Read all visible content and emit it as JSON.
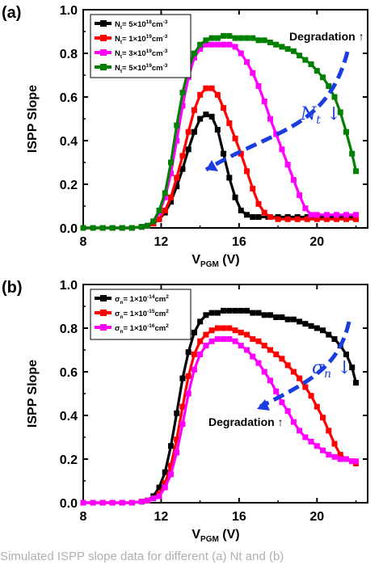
{
  "chart_data": [
    {
      "panel": "(a)",
      "type": "line",
      "xlabel_main": "V",
      "xlabel_sub": "PGM",
      "xlabel_unit": " (V)",
      "ylabel": "ISPP Slope",
      "xlim": [
        8,
        22.6
      ],
      "ylim": [
        0,
        1.0
      ],
      "xticks": [
        "8",
        "12",
        "16",
        "20"
      ],
      "yticks": [
        "0.0",
        "0.2",
        "0.4",
        "0.6",
        "0.8",
        "1.0"
      ],
      "legend_position": "top-left",
      "annotations": [
        {
          "text": "Degradation ↑"
        },
        {
          "text": "N",
          "sub": "t",
          "suffix": " ↓"
        }
      ],
      "series": [
        {
          "name_main": "N",
          "name_sub": "t",
          "name_rest": "= 5×10",
          "name_exp": "18",
          "name_unit": "cm",
          "name_unit_exp": "-3",
          "color": "#000000",
          "x": [
            8,
            8.5,
            9,
            9.5,
            10,
            10.5,
            11,
            11.3,
            11.6,
            11.9,
            12.2,
            12.5,
            12.8,
            13.1,
            13.4,
            13.7,
            14.0,
            14.3,
            14.6,
            14.9,
            15.2,
            15.5,
            15.8,
            16.1,
            16.4,
            16.7,
            17,
            17.5,
            18,
            18.5,
            19,
            19.5,
            20,
            20.5,
            21,
            21.5,
            22
          ],
          "y": [
            0.0,
            0.0,
            0.0,
            0.0,
            0.0,
            0.0,
            0.005,
            0.01,
            0.02,
            0.04,
            0.07,
            0.12,
            0.19,
            0.27,
            0.36,
            0.44,
            0.5,
            0.52,
            0.51,
            0.45,
            0.34,
            0.23,
            0.14,
            0.08,
            0.06,
            0.05,
            0.05,
            0.05,
            0.05,
            0.05,
            0.05,
            0.05,
            0.05,
            0.05,
            0.05,
            0.05,
            0.05
          ]
        },
        {
          "name_main": "N",
          "name_sub": "t",
          "name_rest": "= 1×10",
          "name_exp": "19",
          "name_unit": "cm",
          "name_unit_exp": "-3",
          "color": "#ff0000",
          "x": [
            8,
            8.5,
            9,
            9.5,
            10,
            10.5,
            11,
            11.3,
            11.6,
            11.9,
            12.2,
            12.5,
            12.8,
            13.1,
            13.4,
            13.7,
            14.0,
            14.3,
            14.6,
            14.9,
            15.2,
            15.5,
            15.8,
            16.1,
            16.4,
            16.7,
            17.0,
            17.3,
            17.6,
            18,
            18.5,
            19,
            19.5,
            20,
            20.5,
            21,
            21.5,
            22
          ],
          "y": [
            0.0,
            0.0,
            0.0,
            0.0,
            0.0,
            0.0,
            0.005,
            0.01,
            0.02,
            0.04,
            0.08,
            0.14,
            0.23,
            0.33,
            0.44,
            0.54,
            0.61,
            0.64,
            0.64,
            0.61,
            0.55,
            0.48,
            0.41,
            0.34,
            0.26,
            0.18,
            0.11,
            0.07,
            0.05,
            0.04,
            0.04,
            0.04,
            0.04,
            0.04,
            0.04,
            0.04,
            0.04,
            0.04
          ]
        },
        {
          "name_main": "N",
          "name_sub": "t",
          "name_rest": "= 3×10",
          "name_exp": "19",
          "name_unit": "cm",
          "name_unit_exp": "-3",
          "color": "#ff00ff",
          "x": [
            8,
            8.5,
            9,
            9.5,
            10,
            10.5,
            11,
            11.3,
            11.6,
            11.9,
            12.2,
            12.5,
            12.8,
            13.1,
            13.4,
            13.7,
            14.0,
            14.3,
            14.6,
            14.9,
            15.2,
            15.5,
            15.8,
            16.1,
            16.4,
            16.7,
            17.0,
            17.3,
            17.6,
            17.9,
            18.2,
            18.5,
            18.8,
            19.1,
            19.4,
            19.7,
            20,
            20.5,
            21,
            21.5,
            22
          ],
          "y": [
            0.0,
            0.0,
            0.0,
            0.0,
            0.0,
            0.0,
            0.005,
            0.01,
            0.03,
            0.07,
            0.14,
            0.25,
            0.4,
            0.56,
            0.69,
            0.78,
            0.82,
            0.84,
            0.84,
            0.84,
            0.84,
            0.84,
            0.83,
            0.8,
            0.76,
            0.71,
            0.65,
            0.58,
            0.5,
            0.43,
            0.36,
            0.29,
            0.22,
            0.15,
            0.09,
            0.06,
            0.06,
            0.06,
            0.06,
            0.06,
            0.06
          ]
        },
        {
          "name_main": "N",
          "name_sub": "t",
          "name_rest": "= 5×10",
          "name_exp": "19",
          "name_unit": "cm",
          "name_unit_exp": "-3",
          "color": "#008000",
          "x": [
            8,
            8.5,
            9,
            9.5,
            10,
            10.5,
            11,
            11.3,
            11.6,
            11.9,
            12.2,
            12.5,
            12.8,
            13.1,
            13.4,
            13.7,
            14.0,
            14.3,
            14.6,
            14.9,
            15.2,
            15.5,
            15.8,
            16.1,
            16.4,
            16.7,
            17.0,
            17.3,
            17.6,
            17.9,
            18.2,
            18.5,
            18.8,
            19.1,
            19.4,
            19.7,
            20,
            20.3,
            20.6,
            20.9,
            21.2,
            21.5,
            21.8,
            22
          ],
          "y": [
            0.0,
            0.0,
            0.0,
            0.0,
            0.0,
            0.0,
            0.005,
            0.01,
            0.03,
            0.08,
            0.16,
            0.3,
            0.47,
            0.62,
            0.73,
            0.8,
            0.84,
            0.86,
            0.87,
            0.87,
            0.88,
            0.88,
            0.87,
            0.87,
            0.87,
            0.87,
            0.86,
            0.86,
            0.85,
            0.84,
            0.83,
            0.82,
            0.81,
            0.79,
            0.77,
            0.75,
            0.72,
            0.69,
            0.65,
            0.6,
            0.53,
            0.44,
            0.34,
            0.26
          ]
        }
      ]
    },
    {
      "panel": "(b)",
      "type": "line",
      "xlabel_main": "V",
      "xlabel_sub": "PGM",
      "xlabel_unit": " (V)",
      "ylabel": "ISPP Slope",
      "xlim": [
        8,
        22.6
      ],
      "ylim": [
        0,
        1.0
      ],
      "xticks": [
        "8",
        "12",
        "16",
        "20"
      ],
      "yticks": [
        "0.0",
        "0.2",
        "0.4",
        "0.6",
        "0.8",
        "1.0"
      ],
      "legend_position": "top-left",
      "annotations": [
        {
          "text": "Degradation ↑"
        },
        {
          "text": "σ",
          "sub": "n",
          "suffix": " ↓"
        }
      ],
      "series": [
        {
          "name_main": "σ",
          "name_sub": "n",
          "name_rest": "= 1×10",
          "name_exp": "-14",
          "name_unit": "cm",
          "name_unit_exp": "2",
          "color": "#000000",
          "x": [
            8,
            8.5,
            9,
            9.5,
            10,
            10.5,
            11,
            11.3,
            11.6,
            11.9,
            12.2,
            12.5,
            12.8,
            13.1,
            13.4,
            13.7,
            14.0,
            14.3,
            14.6,
            14.9,
            15.2,
            15.5,
            15.8,
            16.1,
            16.4,
            16.7,
            17.0,
            17.3,
            17.6,
            17.9,
            18.2,
            18.5,
            18.8,
            19.1,
            19.4,
            19.7,
            20,
            20.3,
            20.6,
            20.9,
            21.2,
            21.5,
            21.8,
            22
          ],
          "y": [
            0.0,
            0.0,
            0.0,
            0.0,
            0.0,
            0.0,
            0.005,
            0.01,
            0.03,
            0.07,
            0.14,
            0.26,
            0.41,
            0.57,
            0.69,
            0.78,
            0.83,
            0.86,
            0.87,
            0.87,
            0.88,
            0.88,
            0.88,
            0.88,
            0.88,
            0.87,
            0.87,
            0.86,
            0.86,
            0.85,
            0.85,
            0.84,
            0.84,
            0.83,
            0.82,
            0.81,
            0.8,
            0.79,
            0.77,
            0.75,
            0.72,
            0.68,
            0.62,
            0.55
          ]
        },
        {
          "name_main": "σ",
          "name_sub": "n",
          "name_rest": "= 1×10",
          "name_exp": "-15",
          "name_unit": "cm",
          "name_unit_exp": "2",
          "color": "#ff0000",
          "x": [
            8,
            8.5,
            9,
            9.5,
            10,
            10.5,
            11,
            11.3,
            11.6,
            11.9,
            12.2,
            12.5,
            12.8,
            13.1,
            13.4,
            13.7,
            14.0,
            14.3,
            14.6,
            14.9,
            15.2,
            15.5,
            15.8,
            16.1,
            16.4,
            16.7,
            17.0,
            17.3,
            17.6,
            17.9,
            18.2,
            18.5,
            18.8,
            19.1,
            19.4,
            19.7,
            20,
            20.3,
            20.6,
            20.9,
            21.2,
            21.5,
            21.8,
            22
          ],
          "y": [
            0.0,
            0.0,
            0.0,
            0.0,
            0.0,
            0.0,
            0.005,
            0.01,
            0.02,
            0.04,
            0.09,
            0.17,
            0.29,
            0.44,
            0.58,
            0.68,
            0.74,
            0.77,
            0.79,
            0.8,
            0.8,
            0.8,
            0.79,
            0.78,
            0.77,
            0.75,
            0.74,
            0.72,
            0.7,
            0.68,
            0.66,
            0.63,
            0.6,
            0.57,
            0.53,
            0.49,
            0.44,
            0.39,
            0.33,
            0.27,
            0.22,
            0.2,
            0.19,
            0.18
          ]
        },
        {
          "name_main": "σ",
          "name_sub": "n",
          "name_rest": "= 1×10",
          "name_exp": "-16",
          "name_unit": "cm",
          "name_unit_exp": "2",
          "color": "#ff00ff",
          "x": [
            8,
            8.5,
            9,
            9.5,
            10,
            10.5,
            11,
            11.3,
            11.6,
            11.9,
            12.2,
            12.5,
            12.8,
            13.1,
            13.4,
            13.7,
            14.0,
            14.3,
            14.6,
            14.9,
            15.2,
            15.5,
            15.8,
            16.1,
            16.4,
            16.7,
            17.0,
            17.3,
            17.6,
            17.9,
            18.2,
            18.5,
            18.8,
            19.1,
            19.4,
            19.7,
            20,
            20.3,
            20.6,
            20.9,
            21.2,
            21.5,
            21.8,
            22
          ],
          "y": [
            0.0,
            0.0,
            0.0,
            0.0,
            0.0,
            0.0,
            0.005,
            0.01,
            0.02,
            0.03,
            0.07,
            0.13,
            0.23,
            0.36,
            0.5,
            0.61,
            0.68,
            0.72,
            0.74,
            0.75,
            0.75,
            0.75,
            0.74,
            0.72,
            0.7,
            0.67,
            0.64,
            0.6,
            0.56,
            0.51,
            0.46,
            0.42,
            0.37,
            0.33,
            0.3,
            0.28,
            0.26,
            0.24,
            0.22,
            0.21,
            0.2,
            0.2,
            0.19,
            0.19
          ]
        }
      ]
    }
  ],
  "caption": {
    "text": "Simulated ISPP slope data for different (a) Nt and (b)"
  }
}
